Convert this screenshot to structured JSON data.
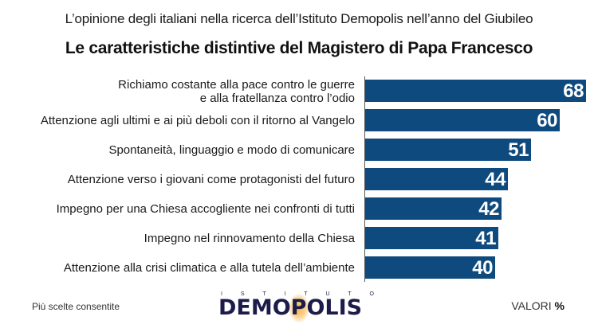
{
  "header": {
    "subtitle": "L’opinione degli italiani nella ricerca dell’Istituto Demopolis nell’anno del Giubileo",
    "title": "Le caratteristiche distintive del Magistero di Papa Francesco"
  },
  "footer": {
    "note": "Più scelte consentite",
    "units_label": "VALORI",
    "units_symbol": "%",
    "logo_top": [
      "I",
      "S",
      "T",
      "I",
      "T",
      "U",
      "T",
      "O"
    ],
    "logo_main": "DEMOPOLIS"
  },
  "colors": {
    "bar": "#0e4a7e",
    "value_text": "#ffffff",
    "logo": "#1c1c4a",
    "logo_accent": "#f7b03c"
  },
  "chart_data": {
    "type": "bar",
    "orientation": "horizontal",
    "title": "Le caratteristiche distintive del Magistero di Papa Francesco",
    "subtitle": "L’opinione degli italiani nella ricerca dell’Istituto Demopolis nell’anno del Giubileo",
    "xlabel": "",
    "ylabel": "",
    "units": "VALORI %",
    "note": "Più scelte consentite",
    "grid": false,
    "legend": null,
    "categories": [
      "Richiamo costante alla pace contro le guerre e alla fratellanza contro l’odio",
      "Attenzione agli ultimi e ai più deboli con il ritorno al Vangelo",
      "Spontaneità, linguaggio e modo di comunicare",
      "Attenzione verso i giovani come protagonisti del futuro",
      "Impegno per una Chiesa accogliente nei confronti di tutti",
      "Impegno nel rinnovamento della Chiesa",
      "Attenzione alla crisi climatica e alla tutela dell’ambiente"
    ],
    "values": [
      68,
      60,
      51,
      44,
      42,
      41,
      40
    ],
    "xlim": [
      0,
      70
    ]
  },
  "rows": [
    {
      "line1": "Richiamo costante alla pace contro le guerre",
      "line2": "e alla fratellanza contro l’odio",
      "value": "68"
    },
    {
      "line1": "Attenzione agli ultimi e ai più deboli con il ritorno al Vangelo",
      "value": "60"
    },
    {
      "line1": "Spontaneità, linguaggio e modo di comunicare",
      "value": "51"
    },
    {
      "line1": "Attenzione verso i giovani come protagonisti del futuro",
      "value": "44"
    },
    {
      "line1": "Impegno per una Chiesa accogliente nei confronti di tutti",
      "value": "42"
    },
    {
      "line1": "Impegno nel rinnovamento della Chiesa",
      "value": "41"
    },
    {
      "line1": "Attenzione alla crisi climatica e alla tutela dell’ambiente",
      "value": "40"
    }
  ]
}
